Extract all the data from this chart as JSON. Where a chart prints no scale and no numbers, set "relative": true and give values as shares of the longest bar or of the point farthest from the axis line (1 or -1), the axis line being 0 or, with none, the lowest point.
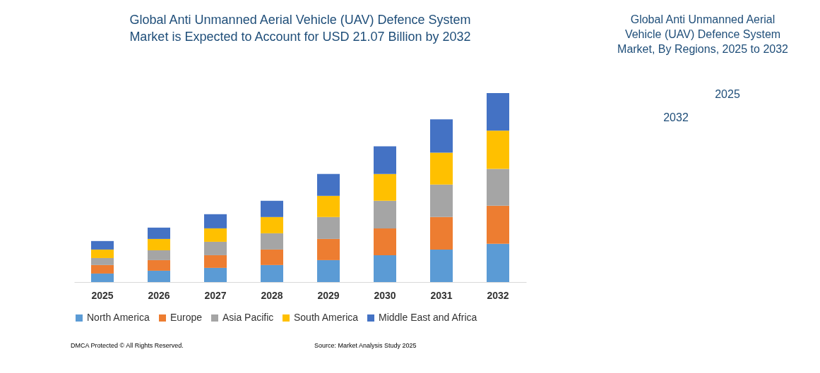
{
  "chart_data": {
    "type": "bar",
    "stacked": true,
    "relative": true,
    "title": "Global Anti Unmanned Aerial Vehicle (UAV) Defence System Market is Expected to Account for USD 21.07 Billion by 2032",
    "categories": [
      "2025",
      "2026",
      "2027",
      "2028",
      "2029",
      "2030",
      "2031",
      "2032"
    ],
    "series": [
      {
        "name": "North America",
        "color": "#5b9bd5",
        "values": [
          0.045,
          0.06,
          0.075,
          0.09,
          0.116,
          0.142,
          0.172,
          0.202
        ]
      },
      {
        "name": "Europe",
        "color": "#ed7d31",
        "values": [
          0.045,
          0.056,
          0.067,
          0.082,
          0.112,
          0.142,
          0.172,
          0.202
        ]
      },
      {
        "name": "Asia Pacific",
        "color": "#a5a5a5",
        "values": [
          0.037,
          0.052,
          0.071,
          0.086,
          0.116,
          0.146,
          0.172,
          0.195
        ]
      },
      {
        "name": "South America",
        "color": "#ffc000",
        "values": [
          0.045,
          0.06,
          0.071,
          0.086,
          0.112,
          0.142,
          0.169,
          0.202
        ]
      },
      {
        "name": "Middle East and Africa",
        "color": "#4472c4",
        "values": [
          0.045,
          0.06,
          0.075,
          0.086,
          0.116,
          0.146,
          0.176,
          0.199
        ]
      }
    ],
    "legend": "bottom",
    "grid": false,
    "annotations": [
      "Global Anti Unmanned Aerial Vehicle (UAV) Defence System Market, By Regions, 2025 to 2032",
      "2032",
      "2025",
      "DMCA Protected © All Rights Reserved.",
      "Source: Market Analysis Study 2025"
    ]
  }
}
